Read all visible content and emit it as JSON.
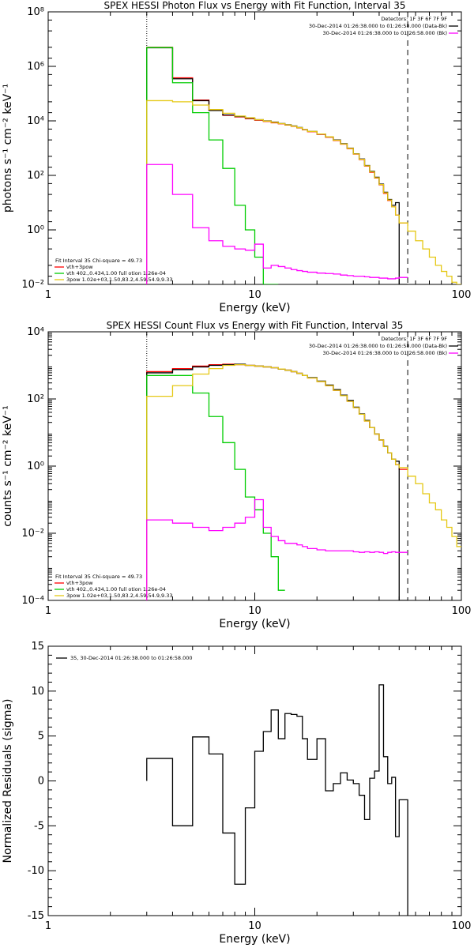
{
  "chart_data": [
    {
      "type": "line",
      "title": "SPEX HESSI Photon Flux vs Energy with Fit Function, Interval 35",
      "xlabel": "Energy (keV)",
      "ylabel": "photons s⁻¹ cm⁻² keV⁻¹",
      "xscale": "log",
      "yscale": "log",
      "xlim": [
        1,
        100
      ],
      "ylim": [
        0.01,
        100000000
      ],
      "x_ticks": [
        "1",
        "10",
        "100"
      ],
      "y_ticks": [
        "10⁻²",
        "10⁰",
        "10²",
        "10⁴",
        "10⁶",
        "10⁸"
      ],
      "header": [
        "Detectors: 1F 3F 6F 7F 9F",
        "30-Dec-2014 01:26:38.000 to 01:26:58.000 (Data-Bk)",
        "30-Dec-2014 01:26:38.000 to 01:26:58.000 (Bk)"
      ],
      "fit_info": [
        "Fit Interval 35   Chi-square = 49.73",
        "vth+3pow",
        "vth 402.,0.434,1.00  full otion 1.26e-04",
        "3pow 1.02e+03,1.50,83.2,4.59,54.9,9.33"
      ],
      "vlines": [
        {
          "x": 3,
          "style": "dotted"
        },
        {
          "x": 55,
          "style": "dashed"
        }
      ],
      "series": [
        {
          "name": "vth+3pow",
          "color": "#ff0000",
          "edges": [
            3,
            4,
            5,
            6,
            7,
            8,
            9,
            10,
            11,
            12,
            13,
            14,
            15,
            16,
            17,
            18,
            20,
            22,
            24,
            26,
            28,
            30,
            32,
            34,
            36,
            38,
            40,
            42,
            44,
            46,
            48,
            50,
            55
          ],
          "values": [
            5000000,
            380000,
            58000,
            25000,
            16000,
            14000,
            12000,
            10500,
            9500,
            8500,
            7800,
            7000,
            6300,
            5500,
            4700,
            4000,
            3200,
            2500,
            1900,
            1400,
            950,
            600,
            380,
            220,
            130,
            80,
            45,
            22,
            12,
            7,
            3.5,
            1.8
          ]
        },
        {
          "name": "Data-Bk",
          "color": "#000000",
          "edges": [
            3,
            4,
            5,
            6,
            7,
            8,
            9,
            10,
            11,
            12,
            13,
            14,
            15,
            16,
            17,
            18,
            20,
            22,
            24,
            26,
            28,
            30,
            32,
            34,
            36,
            38,
            40,
            42,
            44,
            46,
            48,
            50,
            55
          ],
          "values": [
            4800000,
            350000,
            55000,
            24000,
            16500,
            14500,
            12500,
            11000,
            10000,
            9000,
            8000,
            7200,
            6500,
            5700,
            4800,
            4100,
            3300,
            2600,
            2000,
            1450,
            1000,
            620,
            400,
            230,
            140,
            85,
            48,
            24,
            13,
            8,
            10,
            0.01
          ]
        },
        {
          "name": "vth",
          "color": "#00cc00",
          "edges": [
            3,
            4,
            5,
            6,
            7,
            8,
            9,
            10,
            11,
            12,
            13
          ],
          "values": [
            4900000,
            250000,
            20000,
            2000,
            180,
            8,
            1,
            0.1,
            0.01,
            0.01
          ]
        },
        {
          "name": "3pow",
          "color": "#e5c814",
          "edges": [
            3,
            4,
            5,
            6,
            7,
            8,
            9,
            10,
            11,
            12,
            13,
            14,
            15,
            16,
            17,
            18,
            20,
            22,
            24,
            26,
            28,
            30,
            32,
            34,
            36,
            38,
            40,
            42,
            44,
            46,
            48,
            50,
            55,
            60,
            65,
            70,
            75,
            80,
            85,
            90,
            95,
            100
          ],
          "values": [
            55000,
            50000,
            38000,
            26000,
            19000,
            15000,
            13000,
            11000,
            9800,
            8800,
            7900,
            7100,
            6400,
            5600,
            4800,
            4100,
            3300,
            2600,
            1950,
            1420,
            980,
            610,
            390,
            225,
            135,
            82,
            46,
            23,
            12.5,
            7,
            3.5,
            1.8,
            0.9,
            0.4,
            0.2,
            0.1,
            0.05,
            0.03,
            0.02,
            0.012,
            0.01
          ]
        },
        {
          "name": "Bk",
          "color": "#ff00ff",
          "edges": [
            3,
            4,
            5,
            6,
            7,
            8,
            9,
            10,
            11,
            12,
            13,
            14,
            15,
            16,
            17,
            18,
            20,
            22,
            24,
            26,
            28,
            30,
            32,
            34,
            36,
            38,
            40,
            42,
            44,
            46,
            48,
            50,
            55
          ],
          "values": [
            250,
            20,
            1.2,
            0.4,
            0.25,
            0.2,
            0.18,
            0.3,
            0.04,
            0.05,
            0.045,
            0.04,
            0.035,
            0.032,
            0.03,
            0.028,
            0.026,
            0.025,
            0.024,
            0.022,
            0.021,
            0.02,
            0.02,
            0.019,
            0.018,
            0.018,
            0.017,
            0.017,
            0.016,
            0.016,
            0.017,
            0.018
          ]
        }
      ]
    },
    {
      "type": "line",
      "title": "SPEX HESSI Count Flux vs Energy with Fit Function, Interval 35",
      "xlabel": "Energy (keV)",
      "ylabel": "counts s⁻¹ cm⁻² keV⁻¹",
      "xscale": "log",
      "yscale": "log",
      "xlim": [
        1,
        100
      ],
      "ylim": [
        0.0001,
        10000
      ],
      "x_ticks": [
        "1",
        "10",
        "100"
      ],
      "y_ticks": [
        "10⁻⁴",
        "10⁻²",
        "10⁰",
        "10²",
        "10⁴"
      ],
      "header": [
        "Detectors: 1F 3F 6F 7F 9F",
        "30-Dec-2014 01:26:38.000 to 01:26:58.000 (Data-Bk)",
        "30-Dec-2014 01:26:38.000 to 01:26:58.000 (Bk)"
      ],
      "fit_info": [
        "Fit Interval 35   Chi-square = 49.73",
        "vth+3pow",
        "vth 402.,0.434,1.00  full otion 1.26e-04",
        "3pow 1.02e+03,1.50,83.2,4.59,54.9,9.33"
      ],
      "vlines": [
        {
          "x": 3,
          "style": "dotted"
        },
        {
          "x": 55,
          "style": "dashed"
        }
      ],
      "series": [
        {
          "name": "vth+3pow",
          "color": "#ff0000",
          "edges": [
            3,
            4,
            5,
            6,
            7,
            8,
            9,
            10,
            11,
            12,
            13,
            14,
            15,
            16,
            17,
            18,
            20,
            22,
            24,
            26,
            28,
            30,
            32,
            34,
            36,
            38,
            40,
            42,
            44,
            46,
            48,
            50,
            55
          ],
          "values": [
            650,
            800,
            950,
            1050,
            1080,
            1050,
            1000,
            950,
            900,
            850,
            780,
            720,
            650,
            580,
            500,
            420,
            330,
            250,
            180,
            125,
            85,
            55,
            35,
            22,
            14,
            9,
            6,
            3.8,
            2.5,
            1.6,
            1.1,
            0.8
          ]
        },
        {
          "name": "Data-Bk",
          "color": "#000000",
          "edges": [
            3,
            4,
            5,
            6,
            7,
            8,
            9,
            10,
            11,
            12,
            13,
            14,
            15,
            16,
            17,
            18,
            20,
            22,
            24,
            26,
            28,
            30,
            32,
            34,
            36,
            38,
            40,
            42,
            44,
            46,
            48,
            50,
            55
          ],
          "values": [
            600,
            750,
            900,
            1000,
            1050,
            1080,
            1000,
            950,
            900,
            850,
            780,
            720,
            650,
            580,
            500,
            430,
            340,
            260,
            190,
            130,
            90,
            57,
            36,
            23,
            14,
            9,
            6,
            3.9,
            2.5,
            1.6,
            1.4,
            0.0001
          ]
        },
        {
          "name": "vth",
          "color": "#00cc00",
          "edges": [
            3,
            4,
            5,
            6,
            7,
            8,
            9,
            10,
            11,
            12,
            13,
            14
          ],
          "values": [
            500,
            500,
            150,
            30,
            5,
            0.8,
            0.12,
            0.05,
            0.01,
            0.002,
            0.0002
          ]
        },
        {
          "name": "3pow",
          "color": "#e5c814",
          "edges": [
            3,
            4,
            5,
            6,
            7,
            8,
            9,
            10,
            11,
            12,
            13,
            14,
            15,
            16,
            17,
            18,
            20,
            22,
            24,
            26,
            28,
            30,
            32,
            34,
            36,
            38,
            40,
            42,
            44,
            46,
            48,
            50,
            55,
            60,
            65,
            70,
            75,
            80,
            85,
            90,
            95,
            100
          ],
          "values": [
            120,
            250,
            550,
            800,
            1000,
            1050,
            1000,
            950,
            900,
            850,
            780,
            720,
            650,
            580,
            500,
            420,
            330,
            250,
            180,
            125,
            85,
            55,
            35,
            22,
            14,
            9,
            6,
            3.8,
            2.5,
            1.6,
            1.1,
            0.9,
            0.5,
            0.3,
            0.15,
            0.08,
            0.05,
            0.025,
            0.015,
            0.008,
            0.004
          ]
        },
        {
          "name": "Bk",
          "color": "#ff00ff",
          "edges": [
            3,
            4,
            5,
            6,
            7,
            8,
            9,
            10,
            11,
            12,
            13,
            14,
            15,
            16,
            17,
            18,
            20,
            22,
            24,
            26,
            28,
            30,
            32,
            34,
            36,
            38,
            40,
            42,
            44,
            46,
            48,
            50,
            55
          ],
          "values": [
            0.025,
            0.02,
            0.015,
            0.012,
            0.015,
            0.02,
            0.03,
            0.1,
            0.015,
            0.008,
            0.006,
            0.005,
            0.005,
            0.0045,
            0.004,
            0.0035,
            0.0032,
            0.003,
            0.003,
            0.003,
            0.003,
            0.0028,
            0.0027,
            0.0028,
            0.0027,
            0.0028,
            0.0027,
            0.0025,
            0.0027,
            0.0028,
            0.0027,
            0.0027
          ]
        }
      ]
    },
    {
      "type": "line",
      "title": "",
      "xlabel": "Energy (keV)",
      "ylabel": "Normalized Residuals (sigma)",
      "xscale": "log",
      "yscale": "linear",
      "xlim": [
        1,
        100
      ],
      "ylim": [
        -15,
        15
      ],
      "x_ticks": [
        "1",
        "10",
        "100"
      ],
      "y_ticks": [
        "-15",
        "-10",
        "-5",
        "0",
        "5",
        "10",
        "15"
      ],
      "legend": "35, 30-Dec-2014 01:26:38.000 to 01:26:58.000",
      "series": [
        {
          "name": "35, 30-Dec-2014 01:26:38.000 to 01:26:58.000",
          "color": "#000000",
          "edges": [
            3,
            4,
            5,
            6,
            7,
            8,
            9,
            10,
            11,
            12,
            13,
            14,
            15,
            16,
            17,
            18,
            20,
            22,
            24,
            26,
            28,
            30,
            32,
            34,
            36,
            38,
            40,
            42,
            44,
            46,
            48,
            50,
            55
          ],
          "values": [
            2.5,
            -5,
            4.9,
            3,
            -5.8,
            -11.5,
            -3,
            3.3,
            5.5,
            7.9,
            4.7,
            7.5,
            7.4,
            7.2,
            4.7,
            2.4,
            4.7,
            -1.1,
            -0.3,
            0.9,
            0.1,
            -0.3,
            -1.6,
            -4.3,
            0.3,
            1.1,
            10.7,
            2.7,
            -0.3,
            0.4,
            -6.2,
            -2.1
          ]
        }
      ]
    }
  ]
}
